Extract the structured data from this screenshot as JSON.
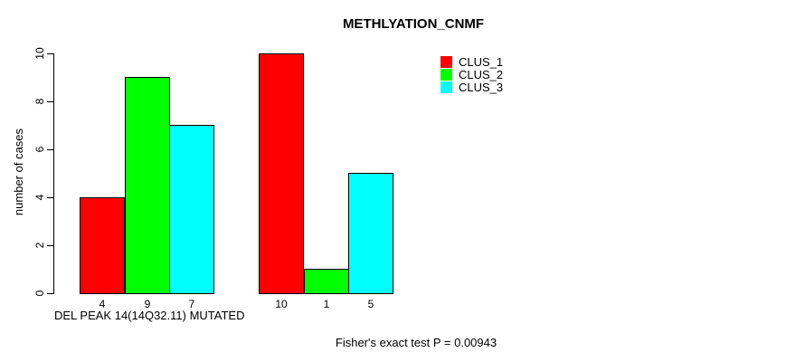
{
  "title": "METHLYATION_CNMF",
  "chart_data": {
    "type": "bar",
    "title": "METHLYATION_CNMF",
    "ylabel": "number of cases",
    "xlabel": "DEL PEAK 14(14Q32.11) MUTATED",
    "footer_note": "Fisher's exact test P = 0.00943",
    "series": [
      {
        "name": "CLUS_1",
        "color": "#ff0000"
      },
      {
        "name": "CLUS_2",
        "color": "#00ff00"
      },
      {
        "name": "CLUS_3",
        "color": "#00ffff"
      }
    ],
    "groups": [
      {
        "values": [
          4,
          9,
          7
        ]
      },
      {
        "values": [
          10,
          1,
          5
        ]
      }
    ],
    "yticks": [
      0,
      2,
      4,
      6,
      8,
      10
    ],
    "ylim": [
      0,
      10
    ],
    "legend_position": "top-right",
    "grid": false,
    "bar_border_color": "#000000"
  }
}
